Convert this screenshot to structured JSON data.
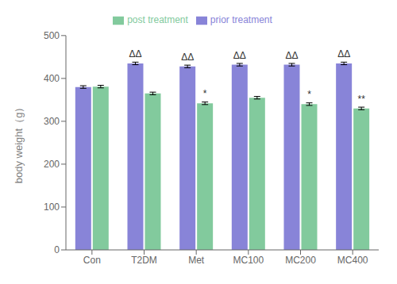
{
  "chart_data": {
    "type": "bar",
    "categories": [
      "Con",
      "T2DM",
      "Met",
      "MC100",
      "MC200",
      "MC400"
    ],
    "series": [
      {
        "name": "prior treatment",
        "color": "#8884d8",
        "values": [
          380,
          435,
          428,
          432,
          432,
          435
        ],
        "errors": [
          3,
          3,
          3,
          3,
          3,
          3
        ],
        "annotations": [
          null,
          "ΔΔ",
          "ΔΔ",
          "ΔΔ",
          "ΔΔ",
          "ΔΔ"
        ]
      },
      {
        "name": "post treatment",
        "color": "#82ca9d",
        "values": [
          381,
          365,
          342,
          355,
          340,
          330
        ],
        "errors": [
          3,
          3,
          3,
          3,
          3,
          3
        ],
        "annotations": [
          null,
          null,
          "*",
          null,
          "*",
          "**"
        ]
      }
    ],
    "ylabel": "body weight（g）",
    "ylim": [
      0,
      500
    ],
    "yticks": [
      0,
      100,
      200,
      300,
      400,
      500
    ],
    "legend": "top",
    "grid": false
  }
}
